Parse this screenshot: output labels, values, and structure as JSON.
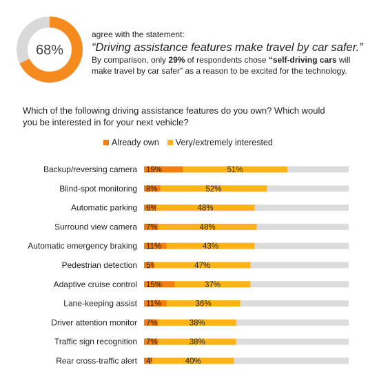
{
  "headline": {
    "percent_label": "68%",
    "percent_value": 68,
    "lead": "agree with the statement:",
    "quote": "“Driving assistance features make travel by car safer.”",
    "body_1": "By comparison, only ",
    "body_bold_1": "29%",
    "body_2": " of respondents chose ",
    "body_bold_2": "“self-driving cars",
    "body_3": " will make travel by car safer” as a reason to be excited for the technology."
  },
  "colors": {
    "already_own": "#f07f10",
    "interested": "#fbb317",
    "track": "#dcdcdc",
    "donut_bg": "#d9d9d9",
    "donut_fg": "#f58a1f"
  },
  "chart_data": {
    "type": "bar",
    "orientation": "horizontal",
    "stacked": true,
    "question": "Which of the following driving assistance features do you own? Which would you be interested in for your next vehicle?",
    "categories": [
      "Backup/reversing camera",
      "Blind-spot monitoring",
      "Automatic parking",
      "Surround view camera",
      "Automatic emergency braking",
      "Pedestrian detection",
      "Adaptive cruise control",
      "Lane-keeping assist",
      "Driver attention monitor",
      "Traffic sign recognition",
      "Rear cross-traffic alert"
    ],
    "series": [
      {
        "name": "Already own",
        "values": [
          19,
          8,
          6,
          7,
          11,
          5,
          15,
          11,
          7,
          7,
          4
        ],
        "labels": [
          "19%",
          "8%",
          "6%",
          "7%",
          "11%",
          "5%",
          "15%",
          "11%",
          "7%",
          "7%",
          "4%"
        ]
      },
      {
        "name": "Very/extremely interested",
        "values": [
          51,
          52,
          48,
          48,
          43,
          47,
          37,
          36,
          38,
          38,
          40
        ],
        "labels": [
          "51%",
          "52%",
          "48%",
          "48%",
          "43%",
          "47%",
          "37%",
          "36%",
          "38%",
          "38%",
          "40%"
        ]
      }
    ],
    "xlim": [
      0,
      100
    ],
    "legend_position": "top"
  }
}
